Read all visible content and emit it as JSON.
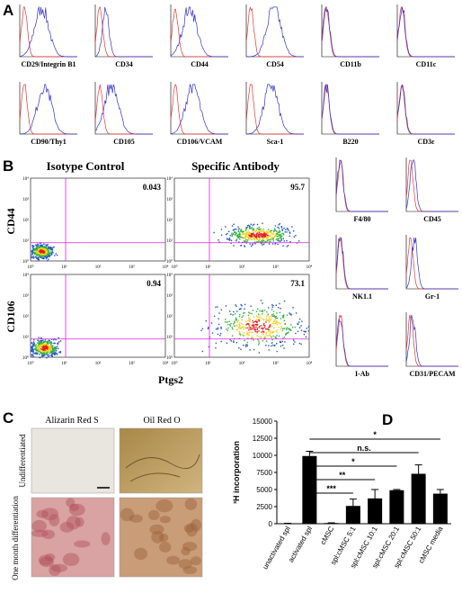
{
  "panels": {
    "a": {
      "label": "A",
      "histograms": [
        "CD29/Integrin B1",
        "CD34",
        "CD44",
        "CD54",
        "CD11b",
        "CD11c",
        "CD90/Thy1",
        "CD105",
        "CD106/VCAM",
        "Sca-1",
        "B220",
        "CD3ε"
      ]
    },
    "b": {
      "label": "B",
      "columns": [
        "Isotype Control",
        "Specific Antibody"
      ],
      "rows": [
        "CD44",
        "CD106"
      ],
      "x_label": "Ptgs2",
      "quadrant_values": [
        [
          "0.043",
          "95.7"
        ],
        [
          "0.94",
          "73.1"
        ]
      ],
      "decade_labels": [
        "10⁰",
        "10¹",
        "10²",
        "10³",
        "10⁴"
      ],
      "histograms": [
        "F4/80",
        "CD45",
        "NK1.1",
        "Gr-1",
        "I-Ab",
        "CD31/PECAM"
      ]
    },
    "c": {
      "label": "C",
      "columns": [
        "Alizarin Red S",
        "Oil Red O"
      ],
      "rows": [
        "Undifferentiated",
        "One month differentiation"
      ]
    }
  },
  "chart_data": {
    "type": "bar",
    "label": "D",
    "y_label": "³H incorporation",
    "categories": [
      "unactivated spl",
      "activated spl",
      "cMSC",
      "spl:cMSC 5:1",
      "spl:cMSC 10:1",
      "spl:cMSC 20:1",
      "spl:cMSC 50:1",
      "cMSC media"
    ],
    "values": [
      50,
      9900,
      100,
      2600,
      3700,
      4900,
      7300,
      4400
    ],
    "errors": [
      20,
      700,
      30,
      1000,
      1300,
      100,
      1300,
      600
    ],
    "color": "#000000",
    "ylim": [
      0,
      15000
    ],
    "yticks": [
      0,
      2500,
      5000,
      7500,
      10000,
      12500,
      15000
    ],
    "comparisons": [
      {
        "from": 1,
        "to": 7,
        "label": "*"
      },
      {
        "from": 1,
        "to": 6,
        "label": "n.s."
      },
      {
        "from": 1,
        "to": 5,
        "label": "*"
      },
      {
        "from": 1,
        "to": 4,
        "label": "**"
      },
      {
        "from": 1,
        "to": 3,
        "label": "***"
      }
    ]
  }
}
